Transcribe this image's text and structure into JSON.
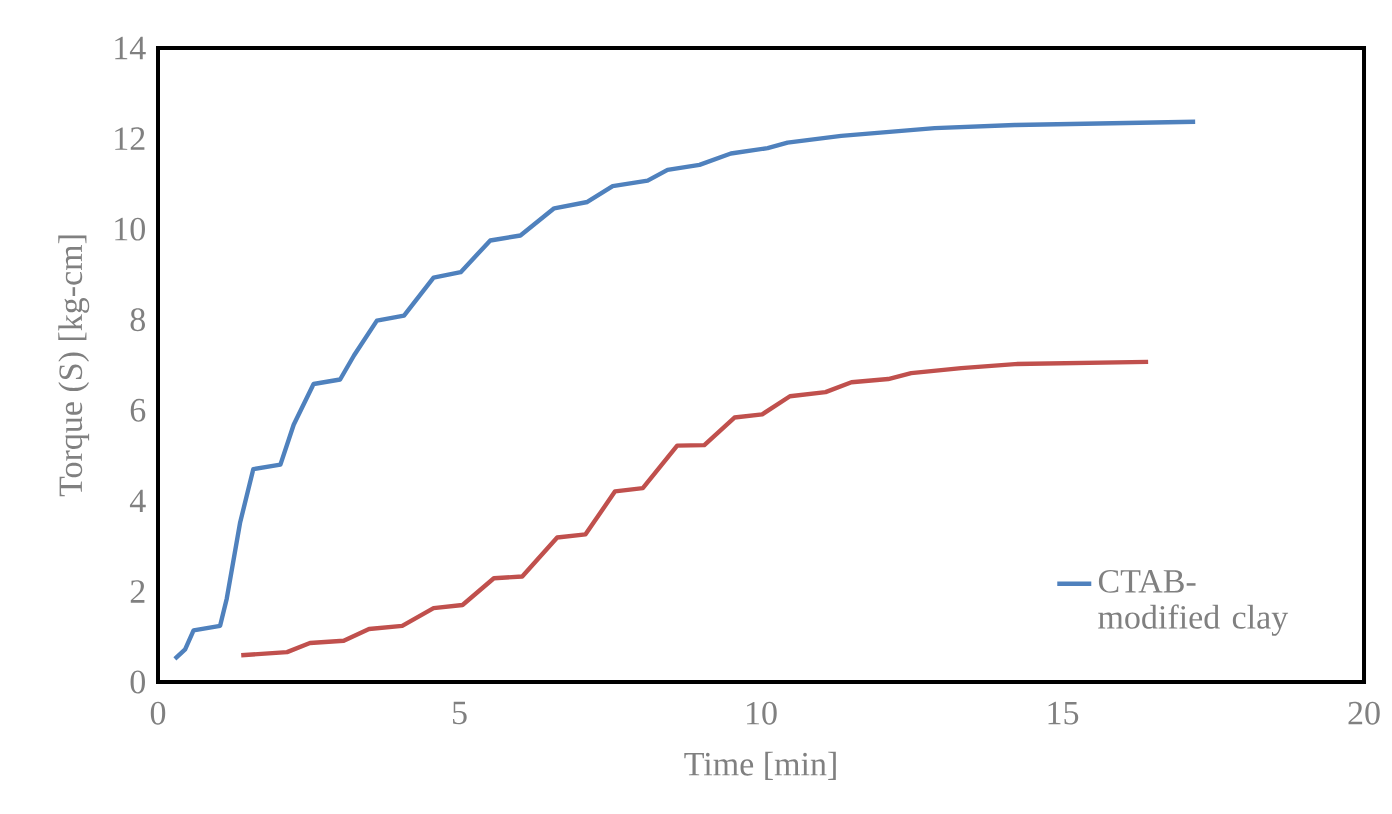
{
  "chart_data": {
    "type": "line",
    "xlabel": "Time [min]",
    "ylabel": "Torque (S) [kg-cm]",
    "xlim": [
      0,
      20
    ],
    "xticks": [
      0,
      5,
      10,
      15,
      20
    ],
    "ylim": [
      0,
      14
    ],
    "yticks": [
      0,
      2,
      4,
      6,
      8,
      10,
      12,
      14
    ],
    "grid": false,
    "legend": "bottom right",
    "marker": "none",
    "line_style": "solid",
    "series": [
      {
        "name": "CTAB-modified clay",
        "color": "#4f81bd",
        "x": [
          0.28,
          0.45,
          0.59,
          1.03,
          1.14,
          1.36,
          1.58,
          2.03,
          2.25,
          2.58,
          3.02,
          3.25,
          3.63,
          4.08,
          4.57,
          5.02,
          5.51,
          6.01,
          6.57,
          7.12,
          7.54,
          8.12,
          8.45,
          8.98,
          9.5,
          10.11,
          10.44,
          11.33,
          12.88,
          14.21,
          17.2
        ],
        "values": [
          0.51,
          0.72,
          1.14,
          1.24,
          1.84,
          3.51,
          4.7,
          4.8,
          5.68,
          6.58,
          6.68,
          7.21,
          7.98,
          8.09,
          8.93,
          9.05,
          9.75,
          9.86,
          10.46,
          10.6,
          10.95,
          11.07,
          11.31,
          11.42,
          11.67,
          11.79,
          11.91,
          12.06,
          12.23,
          12.3,
          12.37
        ]
      },
      {
        "color": "#c0504d",
        "x": [
          1.38,
          2.14,
          2.52,
          3.08,
          3.5,
          4.05,
          4.57,
          5.05,
          5.57,
          6.04,
          6.62,
          7.09,
          7.58,
          8.04,
          8.61,
          9.06,
          9.56,
          10.02,
          10.48,
          11.07,
          11.5,
          12.11,
          12.49,
          13.32,
          14.21,
          16.42
        ],
        "values": [
          0.59,
          0.66,
          0.86,
          0.91,
          1.17,
          1.24,
          1.63,
          1.7,
          2.29,
          2.33,
          3.19,
          3.26,
          4.21,
          4.28,
          5.22,
          5.23,
          5.84,
          5.91,
          6.31,
          6.4,
          6.62,
          6.69,
          6.82,
          6.93,
          7.02,
          7.07
        ]
      }
    ]
  }
}
